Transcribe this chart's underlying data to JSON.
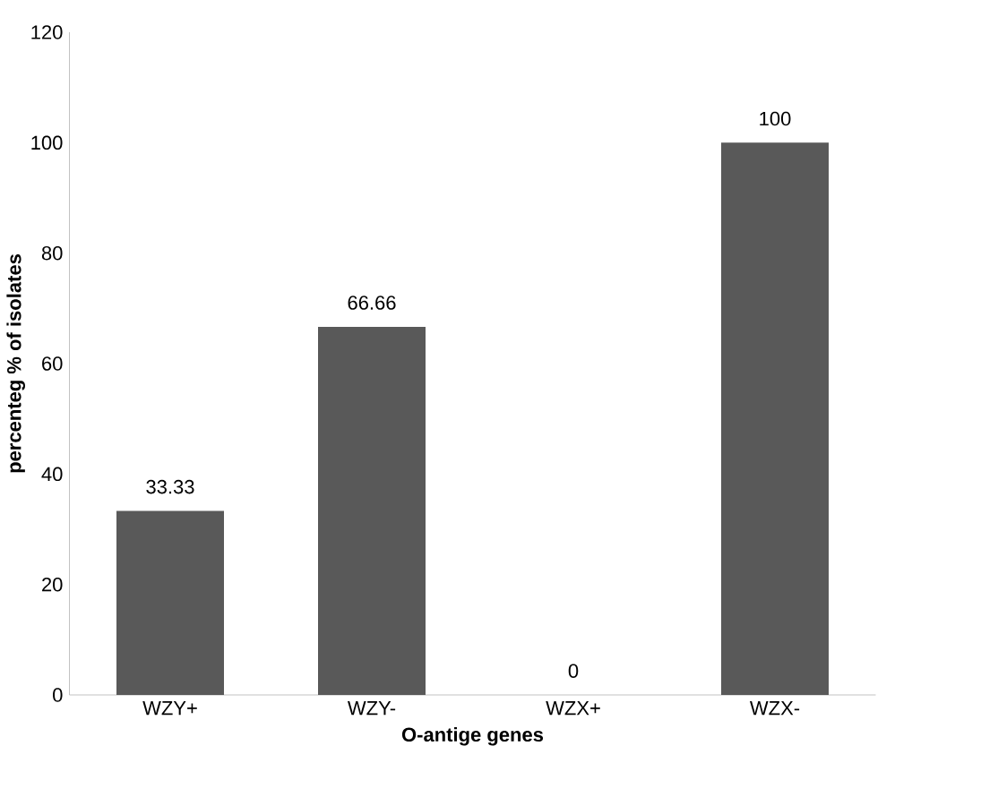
{
  "chart_data": {
    "type": "bar",
    "xlabel": "O-antige genes",
    "ylabel": "percenteg % of isolates",
    "categories": [
      "WZY+",
      "WZY-",
      "WZX+",
      "WZX-"
    ],
    "values": [
      33.33,
      66.66,
      0,
      100
    ],
    "color": "#595959",
    "ylim": [
      0,
      120
    ],
    "yticks": [
      0,
      20,
      40,
      60,
      80,
      100,
      120
    ],
    "data_labels": true
  }
}
